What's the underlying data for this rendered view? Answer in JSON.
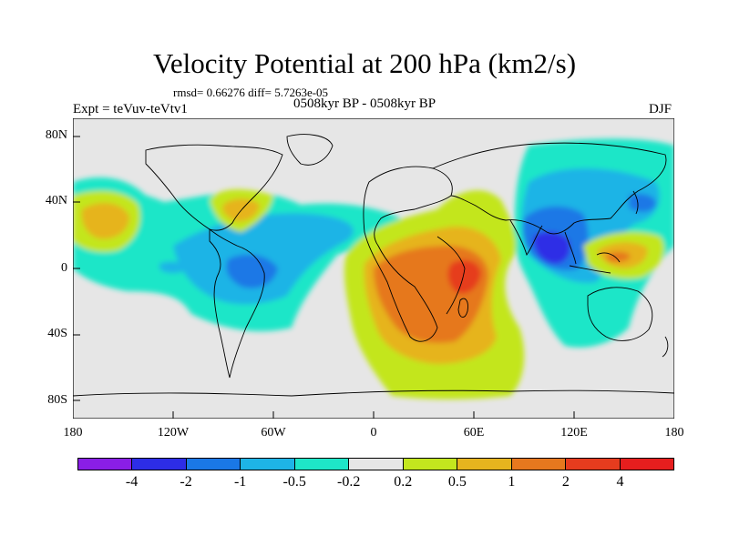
{
  "title": "Velocity Potential at 200 hPa (km2/s)",
  "rmsd_line": "rmsd= 0.66276 diff= 5.7263e-05",
  "expt_label": "Expt = teVuv-teVtv1",
  "period_label": "0508kyr BP - 0508kyr BP",
  "season_label": "DJF",
  "lat_labels": [
    "80N",
    "40N",
    "0",
    "40S",
    "80S"
  ],
  "lon_labels": [
    "180",
    "120W",
    "60W",
    "0",
    "60E",
    "120E",
    "180"
  ],
  "colorbar": {
    "colors": [
      "#8a1ee6",
      "#2d2de6",
      "#1a78e6",
      "#1eb4e6",
      "#1ee6c8",
      "#e6e6e6",
      "#c3e61e",
      "#e6b41e",
      "#e6781e",
      "#e63c1e",
      "#e61e1e"
    ],
    "labels": [
      "-4",
      "-2",
      "-1",
      "-0.5",
      "-0.2",
      "0.2",
      "0.5",
      "1",
      "2",
      "4"
    ]
  },
  "colors": {
    "ocean_bg": "#e6e6e6",
    "coast": "#000000"
  }
}
